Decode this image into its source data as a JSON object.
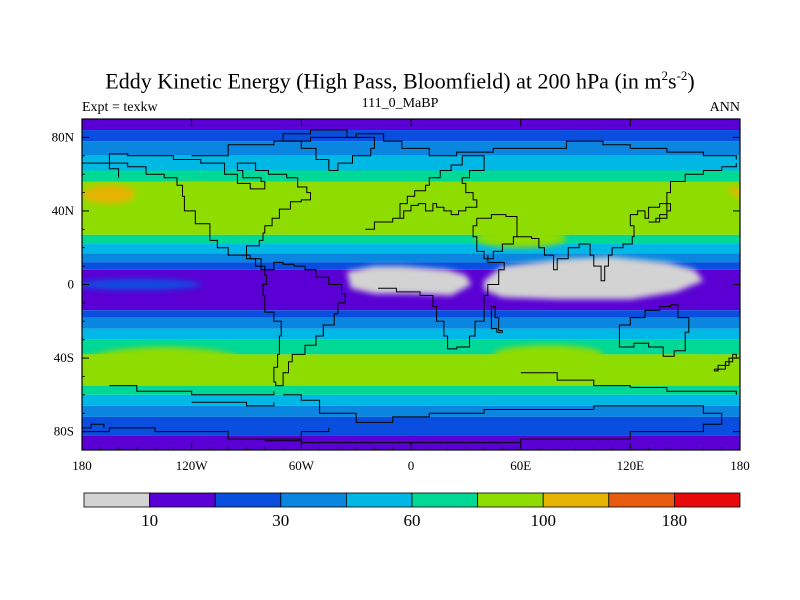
{
  "chart_data": {
    "type": "heatmap",
    "title_main": "Eddy Kinetic Energy (High Pass, Bloomfield) at 200 hPa (in m",
    "title_unit_m_exp": "2",
    "title_unit_s": "s",
    "title_unit_s_exp": "-2",
    "title_close": ")",
    "left_label": "Expt = texkw",
    "center_label": "111_0_MaBP",
    "right_label": "ANN",
    "xlim": [
      -180,
      180
    ],
    "ylim": [
      -90,
      90
    ],
    "x_ticks": [
      {
        "value": -180,
        "label": "180"
      },
      {
        "value": -120,
        "label": "120W"
      },
      {
        "value": -60,
        "label": "60W"
      },
      {
        "value": 0,
        "label": "0"
      },
      {
        "value": 60,
        "label": "60E"
      },
      {
        "value": 120,
        "label": "120E"
      },
      {
        "value": 180,
        "label": "180"
      }
    ],
    "y_ticks": [
      {
        "value": 80,
        "label": "80N"
      },
      {
        "value": 40,
        "label": "40N"
      },
      {
        "value": 0,
        "label": "0"
      },
      {
        "value": -40,
        "label": "40S"
      },
      {
        "value": -80,
        "label": "80S"
      }
    ],
    "colorbar": {
      "colors": [
        "#d3d3d3",
        "#5a00d4",
        "#0a4ee0",
        "#0a86e0",
        "#00b8e6",
        "#00d896",
        "#8fdc00",
        "#e6b400",
        "#e85c10",
        "#e80a0a"
      ],
      "labels": [
        {
          "after_box": 1,
          "label": "10"
        },
        {
          "after_box": 3,
          "label": "30"
        },
        {
          "after_box": 5,
          "label": "60"
        },
        {
          "after_box": 7,
          "label": "100"
        },
        {
          "after_box": 9,
          "label": "180"
        }
      ]
    },
    "bands": [
      {
        "lat_top": 90,
        "lat_bottom": 84,
        "color_index": 1
      },
      {
        "lat_top": 84,
        "lat_bottom": 78,
        "color_index": 2
      },
      {
        "lat_top": 78,
        "lat_bottom": 70,
        "color_index": 3
      },
      {
        "lat_top": 70,
        "lat_bottom": 62,
        "color_index": 4
      },
      {
        "lat_top": 62,
        "lat_bottom": 56,
        "color_index": 5
      },
      {
        "lat_top": 56,
        "lat_bottom": 27,
        "color_index": 6
      },
      {
        "lat_top": 27,
        "lat_bottom": 22,
        "color_index": 5
      },
      {
        "lat_top": 22,
        "lat_bottom": 17,
        "color_index": 4
      },
      {
        "lat_top": 17,
        "lat_bottom": 12,
        "color_index": 3
      },
      {
        "lat_top": 12,
        "lat_bottom": 8,
        "color_index": 2
      },
      {
        "lat_top": 8,
        "lat_bottom": -14,
        "color_index": 1
      },
      {
        "lat_top": -14,
        "lat_bottom": -18,
        "color_index": 2
      },
      {
        "lat_top": -18,
        "lat_bottom": -24,
        "color_index": 3
      },
      {
        "lat_top": -24,
        "lat_bottom": -30,
        "color_index": 4
      },
      {
        "lat_top": -30,
        "lat_bottom": -38,
        "color_index": 5
      },
      {
        "lat_top": -38,
        "lat_bottom": -55,
        "color_index": 6
      },
      {
        "lat_top": -55,
        "lat_bottom": -60,
        "color_index": 5
      },
      {
        "lat_top": -60,
        "lat_bottom": -66,
        "color_index": 4
      },
      {
        "lat_top": -66,
        "lat_bottom": -72,
        "color_index": 3
      },
      {
        "lat_top": -72,
        "lat_bottom": -82,
        "color_index": 2
      },
      {
        "lat_top": -82,
        "lat_bottom": -90,
        "color_index": 1
      }
    ],
    "blobs": [
      {
        "lon": -165,
        "lat": 49,
        "rlon": 15,
        "rlat": 5,
        "color_index": 7
      },
      {
        "lon": 177,
        "lat": 49,
        "rlon": 5,
        "rlat": 4,
        "color_index": 7
      },
      {
        "lon": -150,
        "lat": 0,
        "rlon": 35,
        "rlat": 3,
        "color_index": 2
      },
      {
        "lon": -118,
        "lat": 47,
        "rlon": 35,
        "rlat": 8,
        "color_index": 6
      },
      {
        "lon": 160,
        "lat": 45,
        "rlon": 20,
        "rlat": 8,
        "color_index": 6
      },
      {
        "lon": -135,
        "lat": -43,
        "rlon": 45,
        "rlat": 9,
        "color_index": 6
      },
      {
        "lon": 75,
        "lat": -38,
        "rlon": 30,
        "rlat": 5,
        "color_index": 6
      },
      {
        "lon": 150,
        "lat": -44,
        "rlon": 15,
        "rlat": 5,
        "color_index": 6
      },
      {
        "lon": 60,
        "lat": 25,
        "rlon": 25,
        "rlat": 5,
        "color_index": 6
      }
    ],
    "missing_regions": [
      {
        "name": "Africa",
        "lonlat": [
          [
            -35,
            7
          ],
          [
            -20,
            10
          ],
          [
            -5,
            10
          ],
          [
            20,
            8
          ],
          [
            30,
            5
          ],
          [
            33,
            0
          ],
          [
            22,
            -6
          ],
          [
            0,
            -5
          ],
          [
            -20,
            -5
          ],
          [
            -33,
            -2
          ]
        ]
      },
      {
        "name": "Indo-Pacific",
        "lonlat": [
          [
            40,
            2
          ],
          [
            50,
            10
          ],
          [
            85,
            14
          ],
          [
            110,
            15
          ],
          [
            140,
            12
          ],
          [
            155,
            8
          ],
          [
            160,
            2
          ],
          [
            145,
            -4
          ],
          [
            120,
            -8
          ],
          [
            80,
            -8
          ],
          [
            50,
            -7
          ],
          [
            40,
            -3
          ]
        ]
      }
    ],
    "coastlines": [
      [
        [
          -120,
          70
        ],
        [
          -100,
          76
        ],
        [
          -75,
          78
        ],
        [
          -55,
          80
        ],
        [
          -30,
          82
        ],
        [
          -15,
          78
        ],
        [
          -5,
          74
        ],
        [
          10,
          70
        ],
        [
          25,
          72
        ],
        [
          45,
          74
        ],
        [
          65,
          74
        ],
        [
          85,
          78
        ],
        [
          105,
          76
        ],
        [
          120,
          74
        ],
        [
          140,
          72
        ],
        [
          160,
          70
        ],
        [
          178,
          68
        ]
      ],
      [
        [
          -180,
          66
        ],
        [
          -168,
          66
        ],
        [
          -155,
          64
        ],
        [
          -145,
          60
        ],
        [
          -135,
          58
        ],
        [
          -128,
          54
        ],
        [
          -125,
          48
        ],
        [
          -124,
          40
        ],
        [
          -118,
          33
        ],
        [
          -110,
          24
        ],
        [
          -106,
          20
        ],
        [
          -100,
          16
        ],
        [
          -90,
          14
        ],
        [
          -85,
          10
        ],
        [
          -80,
          8
        ]
      ],
      [
        [
          -80,
          8
        ],
        [
          -75,
          12
        ],
        [
          -70,
          11
        ],
        [
          -64,
          10
        ],
        [
          -58,
          8
        ],
        [
          -52,
          4
        ],
        [
          -45,
          0
        ],
        [
          -38,
          -5
        ],
        [
          -36,
          -10
        ],
        [
          -40,
          -16
        ],
        [
          -42,
          -22
        ],
        [
          -48,
          -28
        ],
        [
          -52,
          -33
        ],
        [
          -58,
          -38
        ],
        [
          -65,
          -42
        ],
        [
          -67,
          -48
        ],
        [
          -70,
          -55
        ],
        [
          -74,
          -53
        ],
        [
          -75,
          -45
        ],
        [
          -73,
          -38
        ],
        [
          -72,
          -28
        ],
        [
          -71,
          -20
        ],
        [
          -75,
          -15
        ],
        [
          -80,
          -6
        ],
        [
          -81,
          0
        ],
        [
          -79,
          5
        ],
        [
          -80,
          8
        ]
      ],
      [
        [
          -80,
          8
        ],
        [
          -82,
          14
        ],
        [
          -88,
          16
        ],
        [
          -90,
          21
        ],
        [
          -86,
          21
        ],
        [
          -83,
          24
        ],
        [
          -81,
          28
        ],
        [
          -80,
          32
        ],
        [
          -76,
          36
        ],
        [
          -72,
          41
        ],
        [
          -66,
          45
        ],
        [
          -60,
          46
        ],
        [
          -55,
          50
        ],
        [
          -57,
          53
        ],
        [
          -62,
          58
        ],
        [
          -68,
          60
        ],
        [
          -78,
          62
        ],
        [
          -85,
          66
        ],
        [
          -95,
          62
        ],
        [
          -92,
          58
        ],
        [
          -82,
          56
        ],
        [
          -80,
          52
        ],
        [
          -88,
          55
        ],
        [
          -95,
          60
        ],
        [
          -102,
          66
        ],
        [
          -115,
          68
        ],
        [
          -130,
          70
        ],
        [
          -140,
          70
        ],
        [
          -155,
          71
        ],
        [
          -165,
          68
        ],
        [
          -165,
          63
        ],
        [
          -160,
          58
        ]
      ],
      [
        [
          -10,
          36
        ],
        [
          -6,
          44
        ],
        [
          -2,
          48
        ],
        [
          2,
          51
        ],
        [
          8,
          54
        ],
        [
          10,
          58
        ],
        [
          16,
          62
        ],
        [
          22,
          65
        ],
        [
          28,
          70
        ],
        [
          40,
          68
        ],
        [
          40,
          62
        ],
        [
          32,
          58
        ],
        [
          28,
          55
        ],
        [
          30,
          50
        ],
        [
          34,
          46
        ],
        [
          36,
          42
        ],
        [
          30,
          40
        ],
        [
          26,
          38
        ],
        [
          22,
          40
        ],
        [
          18,
          42
        ],
        [
          14,
          44
        ],
        [
          12,
          40
        ],
        [
          8,
          44
        ],
        [
          4,
          43
        ],
        [
          0,
          40
        ],
        [
          -4,
          36
        ],
        [
          -10,
          36
        ]
      ],
      [
        [
          36,
          36
        ],
        [
          44,
          38
        ],
        [
          52,
          37
        ],
        [
          58,
          26
        ],
        [
          56,
          22
        ],
        [
          50,
          18
        ],
        [
          45,
          14
        ],
        [
          40,
          18
        ],
        [
          36,
          26
        ],
        [
          34,
          32
        ],
        [
          36,
          36
        ]
      ],
      [
        [
          58,
          26
        ],
        [
          66,
          25
        ],
        [
          70,
          20
        ],
        [
          73,
          16
        ],
        [
          78,
          8
        ],
        [
          80,
          14
        ],
        [
          86,
          20
        ],
        [
          92,
          22
        ],
        [
          98,
          16
        ],
        [
          100,
          10
        ],
        [
          104,
          2
        ],
        [
          106,
          10
        ],
        [
          108,
          16
        ],
        [
          110,
          20
        ],
        [
          116,
          22
        ],
        [
          121,
          26
        ],
        [
          122,
          32
        ],
        [
          120,
          38
        ],
        [
          124,
          40
        ],
        [
          128,
          36
        ],
        [
          130,
          42
        ],
        [
          136,
          44
        ],
        [
          140,
          50
        ],
        [
          142,
          56
        ],
        [
          150,
          60
        ],
        [
          160,
          62
        ],
        [
          170,
          64
        ],
        [
          178,
          66
        ]
      ],
      [
        [
          130,
          34
        ],
        [
          134,
          36
        ],
        [
          140,
          40
        ],
        [
          142,
          44
        ],
        [
          140,
          38
        ],
        [
          136,
          34
        ],
        [
          130,
          34
        ]
      ],
      [
        [
          114,
          -22
        ],
        [
          120,
          -18
        ],
        [
          128,
          -14
        ],
        [
          136,
          -12
        ],
        [
          142,
          -11
        ],
        [
          146,
          -18
        ],
        [
          152,
          -26
        ],
        [
          150,
          -36
        ],
        [
          144,
          -39
        ],
        [
          138,
          -34
        ],
        [
          130,
          -32
        ],
        [
          122,
          -34
        ],
        [
          115,
          -34
        ],
        [
          114,
          -26
        ],
        [
          114,
          -22
        ]
      ],
      [
        [
          166,
          -46
        ],
        [
          172,
          -42
        ],
        [
          176,
          -38
        ],
        [
          178,
          -40
        ],
        [
          174,
          -44
        ],
        [
          168,
          -47
        ],
        [
          166,
          -46
        ]
      ],
      [
        [
          -70,
          -60
        ],
        [
          -60,
          -63
        ],
        [
          -50,
          -70
        ],
        [
          -30,
          -75
        ],
        [
          -10,
          -72
        ],
        [
          10,
          -70
        ],
        [
          40,
          -68
        ],
        [
          70,
          -68
        ],
        [
          100,
          -66
        ],
        [
          130,
          -66
        ],
        [
          160,
          -70
        ],
        [
          170,
          -76
        ],
        [
          160,
          -80
        ],
        [
          120,
          -84
        ],
        [
          60,
          -86
        ],
        [
          0,
          -86
        ],
        [
          -60,
          -84
        ],
        [
          -100,
          -80
        ],
        [
          -140,
          -78
        ],
        [
          -165,
          -80
        ],
        [
          -180,
          -78
        ]
      ],
      [
        [
          -180,
          -78
        ],
        [
          -175,
          -76
        ],
        [
          -168,
          -78
        ]
      ],
      [
        [
          -165,
          -55
        ],
        [
          -150,
          -58
        ],
        [
          -120,
          -60
        ],
        [
          -90,
          -60
        ],
        [
          -75,
          -58
        ]
      ],
      [
        [
          60,
          -48
        ],
        [
          80,
          -52
        ],
        [
          100,
          -55
        ],
        [
          120,
          -56
        ],
        [
          140,
          -58
        ],
        [
          160,
          -58
        ],
        [
          178,
          -60
        ]
      ],
      [
        [
          -120,
          -64
        ],
        [
          -90,
          -66
        ],
        [
          -75,
          -64
        ]
      ],
      [
        [
          -80,
          -85
        ],
        [
          -60,
          -80
        ],
        [
          -45,
          -78
        ]
      ],
      [
        [
          50,
          -25
        ],
        [
          48,
          -18
        ],
        [
          46,
          -12
        ],
        [
          44,
          -18
        ],
        [
          44,
          -24
        ],
        [
          47,
          -26
        ],
        [
          50,
          -25
        ]
      ],
      [
        [
          -25,
          30
        ],
        [
          -20,
          34
        ],
        [
          -10,
          36
        ]
      ],
      [
        [
          -45,
          62
        ],
        [
          -40,
          66
        ],
        [
          -32,
          70
        ],
        [
          -22,
          74
        ],
        [
          -20,
          80
        ],
        [
          -35,
          84
        ],
        [
          -55,
          82
        ],
        [
          -70,
          78
        ],
        [
          -60,
          74
        ],
        [
          -52,
          68
        ],
        [
          -45,
          62
        ]
      ],
      [
        [
          -18,
          -2
        ],
        [
          -8,
          -4
        ],
        [
          5,
          -6
        ],
        [
          12,
          -12
        ],
        [
          14,
          -20
        ],
        [
          18,
          -28
        ],
        [
          20,
          -35
        ],
        [
          25,
          -34
        ],
        [
          32,
          -28
        ],
        [
          35,
          -20
        ],
        [
          40,
          -15
        ],
        [
          40,
          -6
        ],
        [
          42,
          0
        ],
        [
          48,
          8
        ],
        [
          51,
          12
        ],
        [
          44,
          12
        ],
        [
          42,
          16
        ]
      ]
    ]
  }
}
